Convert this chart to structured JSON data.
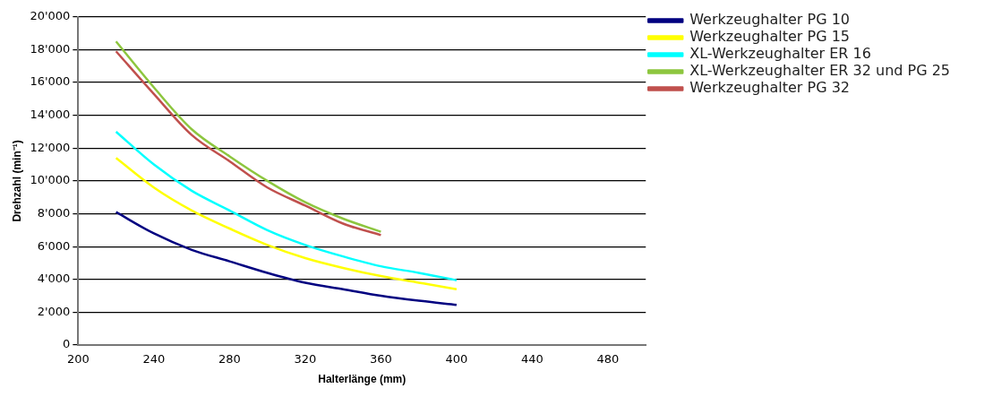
{
  "chart_data": {
    "type": "line",
    "xlabel": "Halterlänge (mm)",
    "ylabel": "Drehzahl (min⁻¹)",
    "xlim": [
      200,
      500
    ],
    "xticks": [
      200,
      240,
      280,
      320,
      360,
      400,
      440,
      480
    ],
    "ylim": [
      0,
      20000
    ],
    "yticks": [
      {
        "value": 0,
        "label": "0"
      },
      {
        "value": 2000,
        "label": "2'000"
      },
      {
        "value": 4000,
        "label": "4'000"
      },
      {
        "value": 6000,
        "label": "6'000"
      },
      {
        "value": 8000,
        "label": "8'000"
      },
      {
        "value": 10000,
        "label": "10'000"
      },
      {
        "value": 12000,
        "label": "12'000"
      },
      {
        "value": 14000,
        "label": "14'000"
      },
      {
        "value": 16000,
        "label": "16'000"
      },
      {
        "value": 18000,
        "label": "18'000"
      },
      {
        "value": 20000,
        "label": "20'000"
      }
    ],
    "grid": "y",
    "legend": "top right",
    "marker": "none",
    "line_style": "solid",
    "series": [
      {
        "name": "Werkzeughalter PG 10",
        "color": "#000080",
        "x": [
          220,
          240,
          260,
          280,
          300,
          320,
          340,
          360,
          380,
          400
        ],
        "values": [
          8100,
          6800,
          5800,
          5100,
          4400,
          3800,
          3400,
          3000,
          2700,
          2450
        ]
      },
      {
        "name": "Werkzeughalter PG 15",
        "color": "#ffff00",
        "x": [
          220,
          240,
          260,
          280,
          300,
          320,
          340,
          360,
          380,
          400
        ],
        "values": [
          11400,
          9600,
          8200,
          7100,
          6100,
          5300,
          4700,
          4200,
          3800,
          3400
        ]
      },
      {
        "name": "XL-Werkzeughalter ER 16",
        "color": "#00ffff",
        "x": [
          220,
          240,
          260,
          280,
          300,
          320,
          340,
          360,
          380,
          400
        ],
        "values": [
          13000,
          11000,
          9400,
          8200,
          7000,
          6100,
          5400,
          4800,
          4400,
          3950
        ]
      },
      {
        "name": "XL-Werkzeughalter ER 32 und PG 25",
        "color": "#8dc63f",
        "x": [
          220,
          240,
          260,
          280,
          300,
          320,
          340,
          360
        ],
        "values": [
          18500,
          15700,
          13150,
          11500,
          10000,
          8700,
          7700,
          6900
        ]
      },
      {
        "name": "Werkzeughalter PG 32",
        "color": "#c0504d",
        "x": [
          220,
          240,
          260,
          280,
          300,
          320,
          340,
          360
        ],
        "values": [
          17900,
          15300,
          12800,
          11200,
          9600,
          8500,
          7400,
          6700
        ]
      }
    ]
  }
}
